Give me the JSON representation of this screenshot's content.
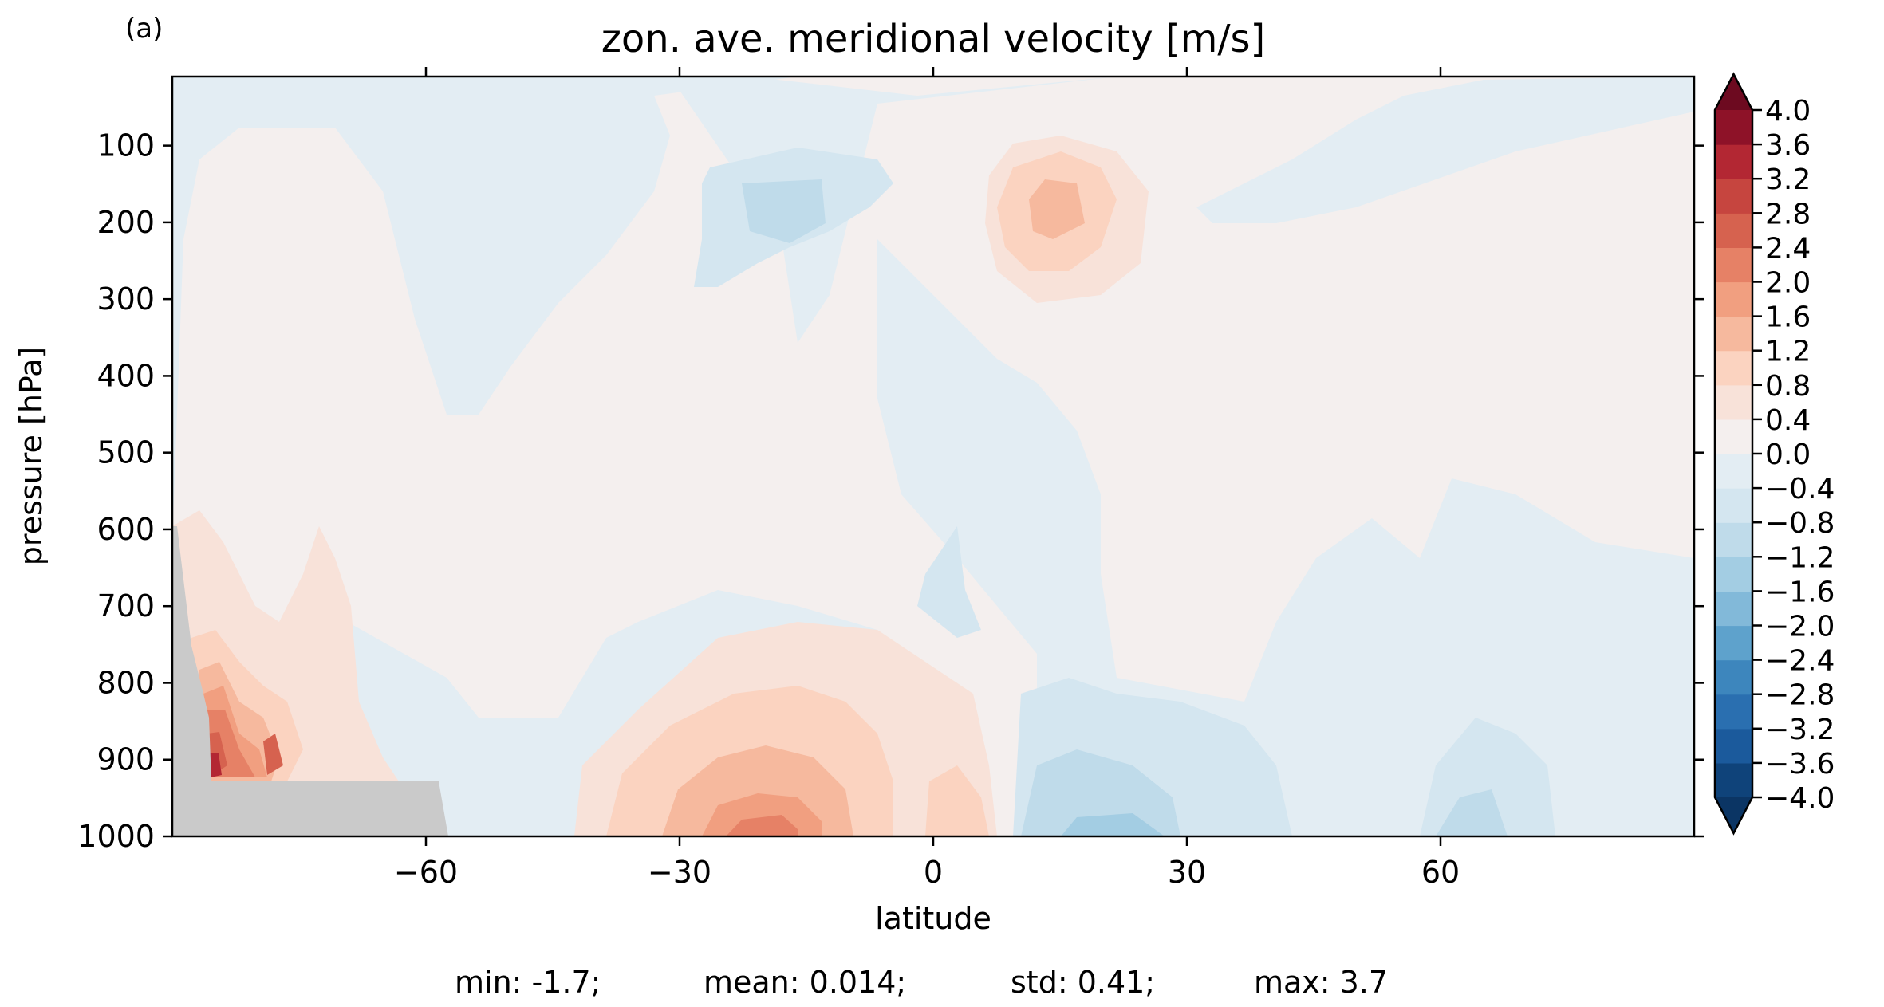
{
  "panel_label": "(a)",
  "stats": {
    "min": "min: -1.7;",
    "mean": "mean: 0.014;",
    "std": "std: 0.41;",
    "max": "max: 3.7"
  },
  "chart_data": {
    "type": "heatmap",
    "subtype": "filled-contour",
    "title": "zon. ave. meridional velocity [m/s]",
    "xlabel": "latitude",
    "ylabel": "pressure [hPa]",
    "xlim": [
      -90,
      90
    ],
    "ylim": [
      1000,
      10
    ],
    "y_inverted": true,
    "xticks": [
      -60,
      -30,
      0,
      30,
      60
    ],
    "xtick_labels": [
      "−60",
      "−30",
      "0",
      "30",
      "60"
    ],
    "yticks": [
      100,
      200,
      300,
      400,
      500,
      600,
      700,
      800,
      900,
      1000
    ],
    "ytick_labels": [
      "100",
      "200",
      "300",
      "400",
      "500",
      "600",
      "700",
      "800",
      "900",
      "1000"
    ],
    "grid": false,
    "colormap": "RdBu_r",
    "colorbar": {
      "extend": "both",
      "levels": [
        -4.0,
        -3.6,
        -3.2,
        -2.8,
        -2.4,
        -2.0,
        -1.6,
        -1.2,
        -0.8,
        -0.4,
        0.0,
        0.4,
        0.8,
        1.2,
        1.6,
        2.0,
        2.4,
        2.8,
        3.2,
        3.6,
        4.0
      ],
      "tick_labels": [
        "−4.0",
        "−3.6",
        "−3.2",
        "−2.8",
        "−2.4",
        "−2.0",
        "−1.6",
        "−1.2",
        "−0.8",
        "−0.4",
        "0.0",
        "0.4",
        "0.8",
        "1.2",
        "1.6",
        "2.0",
        "2.4",
        "2.8",
        "3.2",
        "3.6",
        "4.0"
      ],
      "band_colors": [
        "#0f437a",
        "#1b5a9c",
        "#2a6fb0",
        "#3d86bd",
        "#5ea2cc",
        "#82b9d9",
        "#a3cde3",
        "#bfdbea",
        "#d4e6f0",
        "#e3edf3",
        "#f4efee",
        "#f8e2d9",
        "#fbd3c0",
        "#f6b99e",
        "#f19f80",
        "#e68166",
        "#d6624f",
        "#c6453f",
        "#b32733",
        "#8e1228"
      ],
      "under_color": "#0b3564",
      "over_color": "#6d0a20"
    },
    "features": [
      {
        "kind": "max",
        "lat": -20,
        "p": 990,
        "value": 2.2
      },
      {
        "kind": "max",
        "lat": 15,
        "p": 200,
        "value": 1.5
      },
      {
        "kind": "max",
        "lat": -83,
        "p": 900,
        "value": 3.7
      },
      {
        "kind": "min",
        "lat": -17,
        "p": 190,
        "value": -0.9
      },
      {
        "kind": "min",
        "lat": 24,
        "p": 990,
        "value": -1.7
      },
      {
        "kind": "min",
        "lat": 65,
        "p": 990,
        "value": -1.2
      }
    ],
    "topography_mask_color": "#cacaca"
  }
}
